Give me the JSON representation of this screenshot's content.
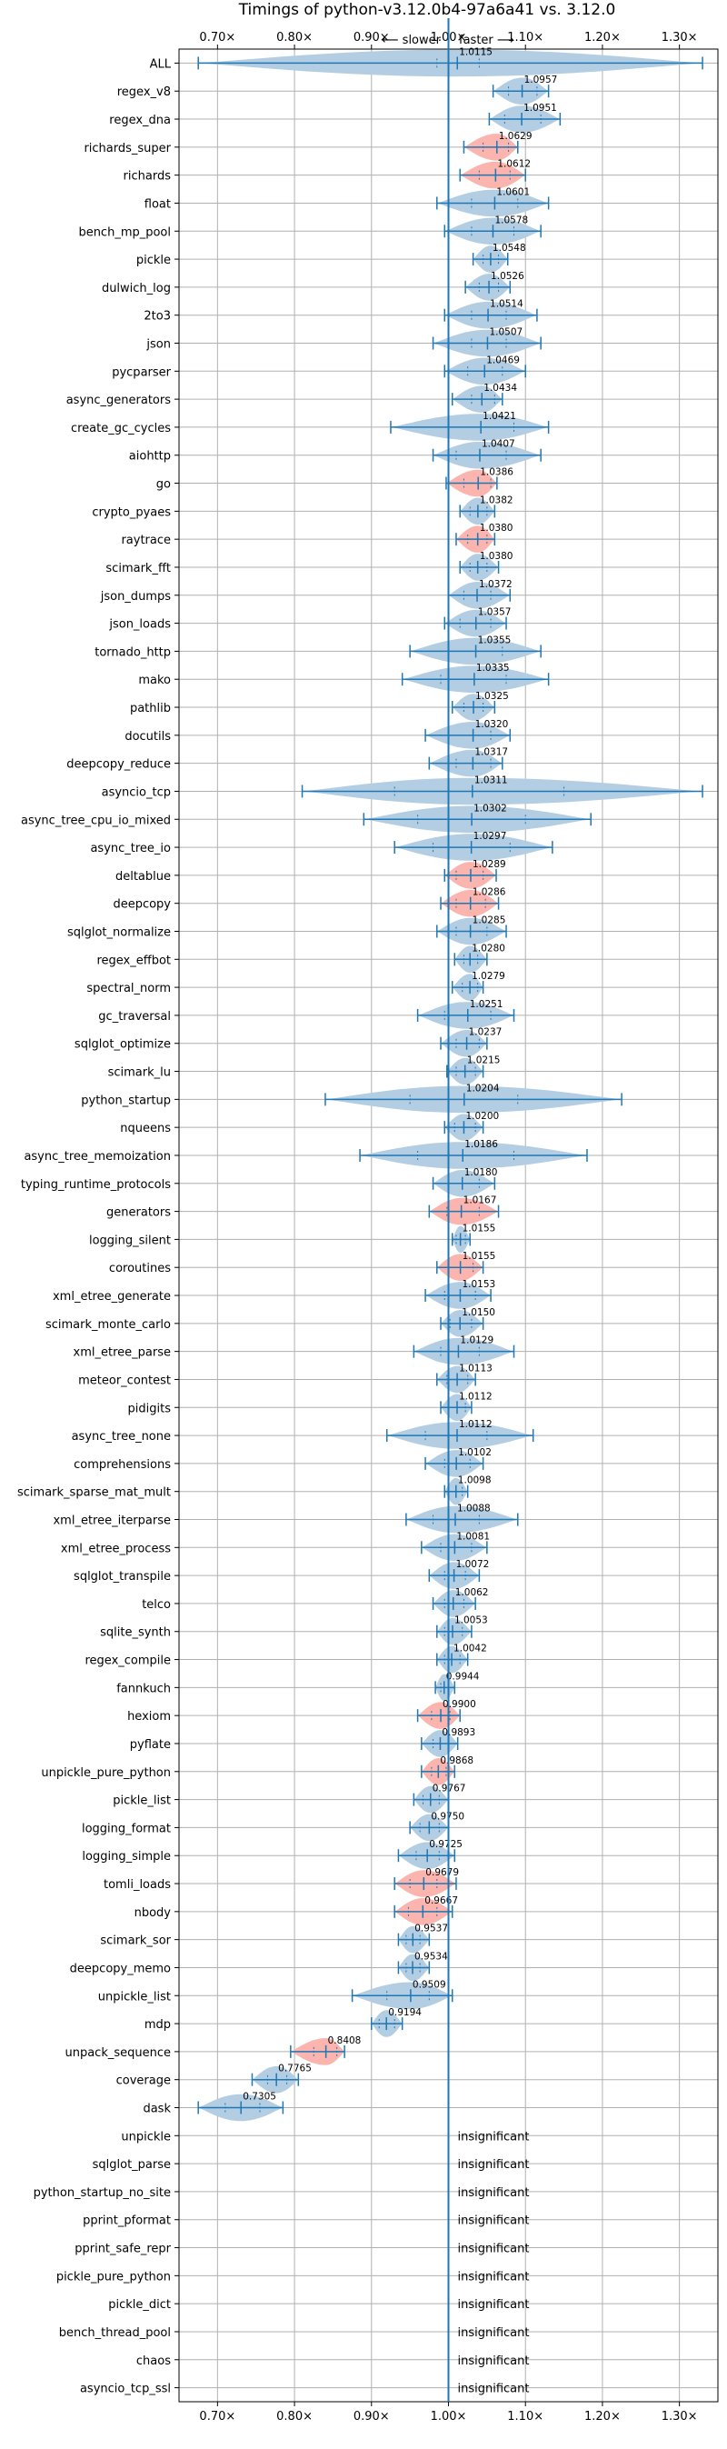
{
  "chart_data": {
    "type": "violin",
    "title": "Timings of python-v3.12.0b4-97a6a41 vs. 3.12.0",
    "direction_left": "⟵ slower",
    "direction_right": "faster ⟶",
    "xlim": [
      0.65,
      1.35
    ],
    "xticks": [
      0.7,
      0.8,
      0.9,
      1.0,
      1.1,
      1.2,
      1.3
    ],
    "xtick_labels": [
      "0.70×",
      "0.80×",
      "0.90×",
      "1.00×",
      "1.10×",
      "1.20×",
      "1.30×"
    ],
    "reference_line": 1.0,
    "grid": true,
    "insignificant_label": "insignificant",
    "colors": {
      "faster": "#b3cde3",
      "slower": "#fbb4ae",
      "line": "#1f77b4"
    },
    "benchmarks": [
      {
        "name": "ALL",
        "value": 1.0115,
        "label": "1.0115",
        "min": 0.675,
        "max": 1.33,
        "q1": 0.985,
        "q3": 1.04,
        "color": "blue"
      },
      {
        "name": "regex_v8",
        "value": 1.0957,
        "label": "1.0957",
        "min": 1.058,
        "max": 1.13,
        "q1": 1.078,
        "q3": 1.115,
        "color": "blue"
      },
      {
        "name": "regex_dna",
        "value": 1.0951,
        "label": "1.0951",
        "min": 1.053,
        "max": 1.145,
        "q1": 1.073,
        "q3": 1.12,
        "color": "blue"
      },
      {
        "name": "richards_super",
        "value": 1.0629,
        "label": "1.0629",
        "min": 1.02,
        "max": 1.09,
        "q1": 1.045,
        "q3": 1.078,
        "color": "red"
      },
      {
        "name": "richards",
        "value": 1.0612,
        "label": "1.0612",
        "min": 1.015,
        "max": 1.1,
        "q1": 1.04,
        "q3": 1.08,
        "color": "red"
      },
      {
        "name": "float",
        "value": 1.0601,
        "label": "1.0601",
        "min": 0.985,
        "max": 1.13,
        "q1": 1.03,
        "q3": 1.09,
        "color": "blue"
      },
      {
        "name": "bench_mp_pool",
        "value": 1.0578,
        "label": "1.0578",
        "min": 0.995,
        "max": 1.12,
        "q1": 1.03,
        "q3": 1.085,
        "color": "blue"
      },
      {
        "name": "pickle",
        "value": 1.0548,
        "label": "1.0548",
        "min": 1.032,
        "max": 1.077,
        "q1": 1.045,
        "q3": 1.065,
        "color": "blue"
      },
      {
        "name": "dulwich_log",
        "value": 1.0526,
        "label": "1.0526",
        "min": 1.022,
        "max": 1.08,
        "q1": 1.04,
        "q3": 1.065,
        "color": "blue"
      },
      {
        "name": "2to3",
        "value": 1.0514,
        "label": "1.0514",
        "min": 0.995,
        "max": 1.115,
        "q1": 1.03,
        "q3": 1.075,
        "color": "blue"
      },
      {
        "name": "json",
        "value": 1.0507,
        "label": "1.0507",
        "min": 0.98,
        "max": 1.12,
        "q1": 1.03,
        "q3": 1.075,
        "color": "blue"
      },
      {
        "name": "pycparser",
        "value": 1.0469,
        "label": "1.0469",
        "min": 0.995,
        "max": 1.1,
        "q1": 1.025,
        "q3": 1.07,
        "color": "blue"
      },
      {
        "name": "async_generators",
        "value": 1.0434,
        "label": "1.0434",
        "min": 1.005,
        "max": 1.07,
        "q1": 1.03,
        "q3": 1.06,
        "color": "blue"
      },
      {
        "name": "create_gc_cycles",
        "value": 1.0421,
        "label": "1.0421",
        "min": 0.925,
        "max": 1.13,
        "q1": 1.0,
        "q3": 1.085,
        "color": "blue"
      },
      {
        "name": "aiohttp",
        "value": 1.0407,
        "label": "1.0407",
        "min": 0.98,
        "max": 1.12,
        "q1": 1.01,
        "q3": 1.075,
        "color": "blue"
      },
      {
        "name": "go",
        "value": 1.0386,
        "label": "1.0386",
        "min": 0.997,
        "max": 1.063,
        "q1": 1.02,
        "q3": 1.055,
        "color": "red"
      },
      {
        "name": "crypto_pyaes",
        "value": 1.0382,
        "label": "1.0382",
        "min": 1.015,
        "max": 1.06,
        "q1": 1.028,
        "q3": 1.05,
        "color": "blue"
      },
      {
        "name": "raytrace",
        "value": 1.038,
        "label": "1.0380",
        "min": 1.01,
        "max": 1.06,
        "q1": 1.025,
        "q3": 1.05,
        "color": "red"
      },
      {
        "name": "scimark_fft",
        "value": 1.038,
        "label": "1.0380",
        "min": 1.015,
        "max": 1.065,
        "q1": 1.028,
        "q3": 1.05,
        "color": "blue"
      },
      {
        "name": "json_dumps",
        "value": 1.0372,
        "label": "1.0372",
        "min": 1.0,
        "max": 1.08,
        "q1": 1.02,
        "q3": 1.055,
        "color": "blue"
      },
      {
        "name": "json_loads",
        "value": 1.0357,
        "label": "1.0357",
        "min": 0.995,
        "max": 1.075,
        "q1": 1.015,
        "q3": 1.055,
        "color": "blue"
      },
      {
        "name": "tornado_http",
        "value": 1.0355,
        "label": "1.0355",
        "min": 0.95,
        "max": 1.12,
        "q1": 1.0,
        "q3": 1.07,
        "color": "blue"
      },
      {
        "name": "mako",
        "value": 1.0335,
        "label": "1.0335",
        "min": 0.94,
        "max": 1.13,
        "q1": 0.99,
        "q3": 1.075,
        "color": "blue"
      },
      {
        "name": "pathlib",
        "value": 1.0325,
        "label": "1.0325",
        "min": 1.005,
        "max": 1.06,
        "q1": 1.02,
        "q3": 1.045,
        "color": "blue"
      },
      {
        "name": "docutils",
        "value": 1.032,
        "label": "1.0320",
        "min": 0.97,
        "max": 1.08,
        "q1": 1.0,
        "q3": 1.055,
        "color": "blue"
      },
      {
        "name": "deepcopy_reduce",
        "value": 1.0317,
        "label": "1.0317",
        "min": 0.975,
        "max": 1.07,
        "q1": 1.01,
        "q3": 1.055,
        "color": "blue"
      },
      {
        "name": "asyncio_tcp",
        "value": 1.0311,
        "label": "1.0311",
        "min": 0.81,
        "max": 1.33,
        "q1": 0.93,
        "q3": 1.15,
        "color": "blue"
      },
      {
        "name": "async_tree_cpu_io_mixed",
        "value": 1.0302,
        "label": "1.0302",
        "min": 0.89,
        "max": 1.185,
        "q1": 0.96,
        "q3": 1.1,
        "color": "blue"
      },
      {
        "name": "async_tree_io",
        "value": 1.0297,
        "label": "1.0297",
        "min": 0.93,
        "max": 1.135,
        "q1": 0.98,
        "q3": 1.08,
        "color": "blue"
      },
      {
        "name": "deltablue",
        "value": 1.0289,
        "label": "1.0289",
        "min": 0.995,
        "max": 1.062,
        "q1": 1.01,
        "q3": 1.045,
        "color": "red"
      },
      {
        "name": "deepcopy",
        "value": 1.0286,
        "label": "1.0286",
        "min": 0.99,
        "max": 1.065,
        "q1": 1.01,
        "q3": 1.048,
        "color": "red"
      },
      {
        "name": "sqlglot_normalize",
        "value": 1.0285,
        "label": "1.0285",
        "min": 0.985,
        "max": 1.075,
        "q1": 1.01,
        "q3": 1.05,
        "color": "blue"
      },
      {
        "name": "regex_effbot",
        "value": 1.028,
        "label": "1.0280",
        "min": 1.008,
        "max": 1.05,
        "q1": 1.02,
        "q3": 1.038,
        "color": "blue"
      },
      {
        "name": "spectral_norm",
        "value": 1.0279,
        "label": "1.0279",
        "min": 1.005,
        "max": 1.045,
        "q1": 1.018,
        "q3": 1.038,
        "color": "blue"
      },
      {
        "name": "gc_traversal",
        "value": 1.0251,
        "label": "1.0251",
        "min": 0.96,
        "max": 1.085,
        "q1": 0.995,
        "q3": 1.055,
        "color": "blue"
      },
      {
        "name": "sqlglot_optimize",
        "value": 1.0237,
        "label": "1.0237",
        "min": 0.99,
        "max": 1.05,
        "q1": 1.01,
        "q3": 1.04,
        "color": "blue"
      },
      {
        "name": "scimark_lu",
        "value": 1.0215,
        "label": "1.0215",
        "min": 0.998,
        "max": 1.045,
        "q1": 1.01,
        "q3": 1.035,
        "color": "blue"
      },
      {
        "name": "python_startup",
        "value": 1.0204,
        "label": "1.0204",
        "min": 0.84,
        "max": 1.225,
        "q1": 0.95,
        "q3": 1.09,
        "color": "blue"
      },
      {
        "name": "nqueens",
        "value": 1.02,
        "label": "1.0200",
        "min": 0.995,
        "max": 1.045,
        "q1": 1.008,
        "q3": 1.035,
        "color": "blue"
      },
      {
        "name": "async_tree_memoization",
        "value": 1.0186,
        "label": "1.0186",
        "min": 0.885,
        "max": 1.18,
        "q1": 0.96,
        "q3": 1.085,
        "color": "blue"
      },
      {
        "name": "typing_runtime_protocols",
        "value": 1.018,
        "label": "1.0180",
        "min": 0.98,
        "max": 1.06,
        "q1": 1.0,
        "q3": 1.04,
        "color": "blue"
      },
      {
        "name": "generators",
        "value": 1.0167,
        "label": "1.0167",
        "min": 0.975,
        "max": 1.065,
        "q1": 0.998,
        "q3": 1.04,
        "color": "red"
      },
      {
        "name": "logging_silent",
        "value": 1.0155,
        "label": "1.0155",
        "min": 1.005,
        "max": 1.028,
        "q1": 1.01,
        "q3": 1.022,
        "color": "blue"
      },
      {
        "name": "coroutines",
        "value": 1.0155,
        "label": "1.0155",
        "min": 0.985,
        "max": 1.045,
        "q1": 1.0,
        "q3": 1.032,
        "color": "red"
      },
      {
        "name": "xml_etree_generate",
        "value": 1.0153,
        "label": "1.0153",
        "min": 0.97,
        "max": 1.055,
        "q1": 0.995,
        "q3": 1.035,
        "color": "blue"
      },
      {
        "name": "scimark_monte_carlo",
        "value": 1.015,
        "label": "1.0150",
        "min": 0.99,
        "max": 1.045,
        "q1": 1.002,
        "q3": 1.03,
        "color": "blue"
      },
      {
        "name": "xml_etree_parse",
        "value": 1.0129,
        "label": "1.0129",
        "min": 0.955,
        "max": 1.085,
        "q1": 0.99,
        "q3": 1.04,
        "color": "blue"
      },
      {
        "name": "meteor_contest",
        "value": 1.0113,
        "label": "1.0113",
        "min": 0.985,
        "max": 1.035,
        "q1": 0.998,
        "q3": 1.025,
        "color": "blue"
      },
      {
        "name": "pidigits",
        "value": 1.0112,
        "label": "1.0112",
        "min": 0.99,
        "max": 1.03,
        "q1": 1.0,
        "q3": 1.022,
        "color": "blue"
      },
      {
        "name": "async_tree_none",
        "value": 1.0112,
        "label": "1.0112",
        "min": 0.92,
        "max": 1.11,
        "q1": 0.97,
        "q3": 1.05,
        "color": "blue"
      },
      {
        "name": "comprehensions",
        "value": 1.0102,
        "label": "1.0102",
        "min": 0.97,
        "max": 1.045,
        "q1": 0.995,
        "q3": 1.028,
        "color": "blue"
      },
      {
        "name": "scimark_sparse_mat_mult",
        "value": 1.0098,
        "label": "1.0098",
        "min": 0.995,
        "max": 1.025,
        "q1": 1.0,
        "q3": 1.018,
        "color": "blue"
      },
      {
        "name": "xml_etree_iterparse",
        "value": 1.0088,
        "label": "1.0088",
        "min": 0.945,
        "max": 1.09,
        "q1": 0.98,
        "q3": 1.04,
        "color": "blue"
      },
      {
        "name": "xml_etree_process",
        "value": 1.0081,
        "label": "1.0081",
        "min": 0.965,
        "max": 1.05,
        "q1": 0.99,
        "q3": 1.03,
        "color": "blue"
      },
      {
        "name": "sqlglot_transpile",
        "value": 1.0072,
        "label": "1.0072",
        "min": 0.975,
        "max": 1.04,
        "q1": 0.995,
        "q3": 1.022,
        "color": "blue"
      },
      {
        "name": "telco",
        "value": 1.0062,
        "label": "1.0062",
        "min": 0.98,
        "max": 1.035,
        "q1": 0.995,
        "q3": 1.02,
        "color": "blue"
      },
      {
        "name": "sqlite_synth",
        "value": 1.0053,
        "label": "1.0053",
        "min": 0.985,
        "max": 1.03,
        "q1": 0.995,
        "q3": 1.018,
        "color": "blue"
      },
      {
        "name": "regex_compile",
        "value": 1.0042,
        "label": "1.0042",
        "min": 0.985,
        "max": 1.025,
        "q1": 0.995,
        "q3": 1.015,
        "color": "blue"
      },
      {
        "name": "fannkuch",
        "value": 0.9944,
        "label": "0.9944",
        "min": 0.983,
        "max": 1.008,
        "q1": 0.99,
        "q3": 1.0,
        "color": "blue"
      },
      {
        "name": "hexiom",
        "value": 0.99,
        "label": "0.9900",
        "min": 0.96,
        "max": 1.015,
        "q1": 0.978,
        "q3": 1.002,
        "color": "red"
      },
      {
        "name": "pyflate",
        "value": 0.9893,
        "label": "0.9893",
        "min": 0.965,
        "max": 1.012,
        "q1": 0.98,
        "q3": 1.0,
        "color": "blue"
      },
      {
        "name": "unpickle_pure_python",
        "value": 0.9868,
        "label": "0.9868",
        "min": 0.965,
        "max": 1.008,
        "q1": 0.978,
        "q3": 0.997,
        "color": "red"
      },
      {
        "name": "pickle_list",
        "value": 0.9767,
        "label": "0.9767",
        "min": 0.955,
        "max": 1.0,
        "q1": 0.967,
        "q3": 0.988,
        "color": "blue"
      },
      {
        "name": "logging_format",
        "value": 0.975,
        "label": "0.9750",
        "min": 0.95,
        "max": 1.0,
        "q1": 0.963,
        "q3": 0.988,
        "color": "blue"
      },
      {
        "name": "logging_simple",
        "value": 0.9725,
        "label": "0.9725",
        "min": 0.935,
        "max": 1.008,
        "q1": 0.958,
        "q3": 0.988,
        "color": "blue"
      },
      {
        "name": "tomli_loads",
        "value": 0.9679,
        "label": "0.9679",
        "min": 0.93,
        "max": 1.01,
        "q1": 0.95,
        "q3": 0.985,
        "color": "red"
      },
      {
        "name": "nbody",
        "value": 0.9667,
        "label": "0.9667",
        "min": 0.93,
        "max": 1.005,
        "q1": 0.948,
        "q3": 0.985,
        "color": "red"
      },
      {
        "name": "scimark_sor",
        "value": 0.9537,
        "label": "0.9537",
        "min": 0.935,
        "max": 0.975,
        "q1": 0.945,
        "q3": 0.963,
        "color": "blue"
      },
      {
        "name": "deepcopy_memo",
        "value": 0.9534,
        "label": "0.9534",
        "min": 0.935,
        "max": 0.975,
        "q1": 0.945,
        "q3": 0.963,
        "color": "blue"
      },
      {
        "name": "unpickle_list",
        "value": 0.9509,
        "label": "0.9509",
        "min": 0.875,
        "max": 1.005,
        "q1": 0.92,
        "q3": 0.975,
        "color": "blue"
      },
      {
        "name": "mdp",
        "value": 0.9194,
        "label": "0.9194",
        "min": 0.9,
        "max": 0.94,
        "q1": 0.91,
        "q3": 0.93,
        "color": "blue"
      },
      {
        "name": "unpack_sequence",
        "value": 0.8408,
        "label": "0.8408",
        "min": 0.795,
        "max": 0.865,
        "q1": 0.825,
        "q3": 0.855,
        "color": "red"
      },
      {
        "name": "coverage",
        "value": 0.7765,
        "label": "0.7765",
        "min": 0.745,
        "max": 0.805,
        "q1": 0.765,
        "q3": 0.79,
        "color": "blue"
      },
      {
        "name": "dask",
        "value": 0.7305,
        "label": "0.7305",
        "min": 0.675,
        "max": 0.785,
        "q1": 0.71,
        "q3": 0.755,
        "color": "blue"
      },
      {
        "name": "unpickle",
        "insignificant": true
      },
      {
        "name": "sqlglot_parse",
        "insignificant": true
      },
      {
        "name": "python_startup_no_site",
        "insignificant": true
      },
      {
        "name": "pprint_pformat",
        "insignificant": true
      },
      {
        "name": "pprint_safe_repr",
        "insignificant": true
      },
      {
        "name": "pickle_pure_python",
        "insignificant": true
      },
      {
        "name": "pickle_dict",
        "insignificant": true
      },
      {
        "name": "bench_thread_pool",
        "insignificant": true
      },
      {
        "name": "chaos",
        "insignificant": true
      },
      {
        "name": "asyncio_tcp_ssl",
        "insignificant": true
      }
    ]
  }
}
